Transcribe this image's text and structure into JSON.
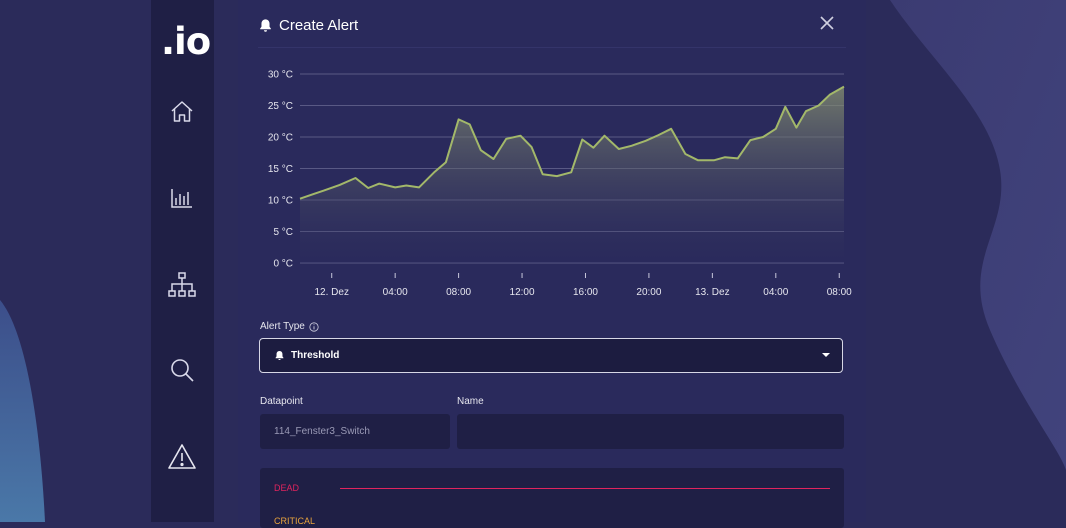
{
  "app": {
    "logo": ".io"
  },
  "nav": [
    {
      "name": "home-icon"
    },
    {
      "name": "chart-icon"
    },
    {
      "name": "hierarchy-icon"
    },
    {
      "name": "search-icon"
    },
    {
      "name": "alert-icon"
    }
  ],
  "dialog": {
    "title": "Create Alert",
    "alert_type_label": "Alert Type",
    "alert_type_value": "Threshold",
    "datapoint_label": "Datapoint",
    "datapoint_value": "114_Fenster3_Switch",
    "name_label": "Name",
    "name_value": "",
    "thresholds": [
      {
        "label": "DEAD",
        "color": "#e0245e"
      },
      {
        "label": "CRITICAL",
        "color": "#e8a33d"
      }
    ]
  },
  "colors": {
    "line": "#a3b86a",
    "fill_top": "#8a9472",
    "grid": "#7a7aa0",
    "text": "#ffffff"
  },
  "chart_data": {
    "type": "area",
    "y_unit": "°C",
    "ylim": [
      0,
      30
    ],
    "y_ticks": [
      "0 °C",
      "5 °C",
      "10 °C",
      "15 °C",
      "20 °C",
      "25 °C",
      "30 °C"
    ],
    "x_ticks": [
      "12. Dez",
      "04:00",
      "08:00",
      "12:00",
      "16:00",
      "20:00",
      "13. Dez",
      "04:00",
      "08:00"
    ],
    "x_hours_range": [
      -2,
      32.3
    ],
    "x_tick_hours": [
      0,
      4,
      8,
      12,
      16,
      20,
      24,
      28,
      32
    ],
    "series": [
      {
        "x_hours": [
          -2,
          -1.2,
          -0.5,
          0.5,
          1.5,
          2.3,
          3,
          4,
          4.7,
          5.5,
          6.5,
          7.2,
          8,
          8.7,
          9.4,
          10.2,
          11,
          11.9,
          12.6,
          13.3,
          14.2,
          15.1,
          15.8,
          16.5,
          17.2,
          18.1,
          18.9,
          19.8,
          20.6,
          21.4,
          22.3,
          23.1,
          24.1,
          24.8,
          25.6,
          26.4,
          27.2,
          28,
          28.6,
          29.3,
          29.9,
          30.7,
          31.4,
          32.3
        ],
        "values": [
          10.2,
          10.9,
          11.5,
          12.4,
          13.5,
          11.9,
          12.6,
          12.0,
          12.3,
          12.0,
          14.5,
          16.0,
          22.8,
          22.0,
          17.9,
          16.5,
          19.7,
          20.2,
          18.4,
          14.1,
          13.8,
          14.4,
          19.6,
          18.3,
          20.2,
          18.1,
          18.6,
          19.4,
          20.3,
          21.3,
          17.3,
          16.3,
          16.3,
          16.8,
          16.6,
          19.5,
          20.0,
          21.3,
          24.8,
          21.5,
          24.1,
          25.0,
          26.7,
          28.0
        ]
      }
    ]
  }
}
